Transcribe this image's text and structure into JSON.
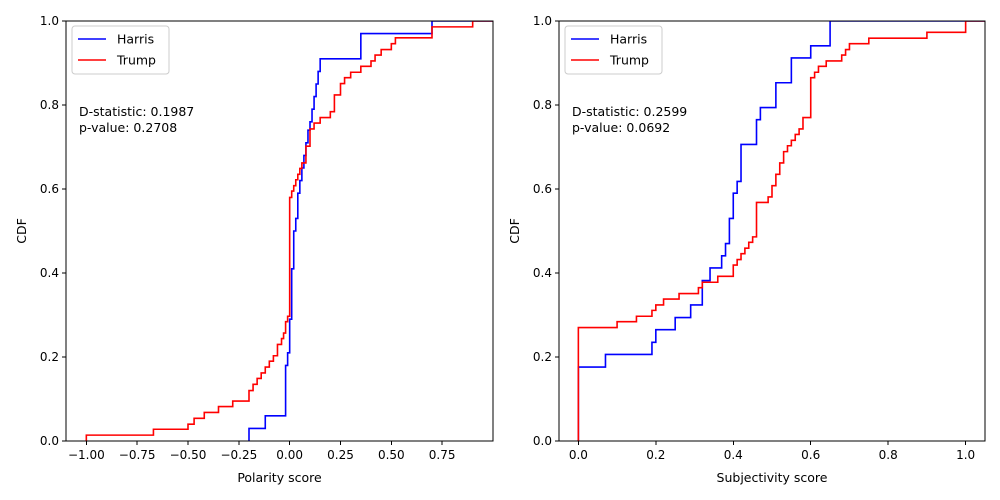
{
  "chart_data": [
    {
      "type": "line",
      "step": true,
      "xlabel": "Polarity score",
      "ylabel": "CDF",
      "xlim": [
        -1.1,
        1.0
      ],
      "ylim": [
        0.0,
        1.0
      ],
      "xticks": [
        -1.0,
        -0.75,
        -0.5,
        -0.25,
        0.0,
        0.25,
        0.5,
        0.75
      ],
      "xtick_labels": [
        "−1.00",
        "−0.75",
        "−0.50",
        "−0.25",
        "0.00",
        "0.25",
        "0.50",
        "0.75"
      ],
      "yticks": [
        0.0,
        0.2,
        0.4,
        0.6,
        0.8,
        1.0
      ],
      "ytick_labels": [
        "0.0",
        "0.2",
        "0.4",
        "0.6",
        "0.8",
        "1.0"
      ],
      "grid": false,
      "legend_position": "top-left",
      "stats": [
        "D-statistic: 0.1987",
        "p-value: 0.2708"
      ],
      "series": [
        {
          "name": "Harris",
          "color": "#0000ff",
          "x": [
            -0.2,
            -0.12,
            -0.02,
            -0.01,
            0.0,
            0.01,
            0.02,
            0.03,
            0.04,
            0.05,
            0.06,
            0.07,
            0.08,
            0.09,
            0.1,
            0.11,
            0.12,
            0.13,
            0.14,
            0.15,
            0.17,
            0.2,
            0.35,
            0.7
          ],
          "y": [
            0.03,
            0.06,
            0.18,
            0.21,
            0.29,
            0.41,
            0.5,
            0.53,
            0.59,
            0.62,
            0.65,
            0.68,
            0.71,
            0.74,
            0.76,
            0.79,
            0.82,
            0.85,
            0.88,
            0.91,
            0.91,
            0.91,
            0.97,
            1.0
          ]
        },
        {
          "name": "Trump",
          "color": "#ff0000",
          "x": [
            -1.0,
            -0.67,
            -0.5,
            -0.47,
            -0.42,
            -0.35,
            -0.28,
            -0.2,
            -0.18,
            -0.16,
            -0.14,
            -0.12,
            -0.1,
            -0.08,
            -0.06,
            -0.04,
            -0.03,
            -0.02,
            -0.01,
            0.0,
            0.01,
            0.02,
            0.03,
            0.04,
            0.05,
            0.06,
            0.08,
            0.1,
            0.12,
            0.15,
            0.2,
            0.22,
            0.25,
            0.27,
            0.3,
            0.35,
            0.4,
            0.42,
            0.45,
            0.5,
            0.52,
            0.7,
            0.9
          ],
          "y": [
            0.014,
            0.028,
            0.04,
            0.054,
            0.068,
            0.082,
            0.095,
            0.12,
            0.135,
            0.149,
            0.162,
            0.176,
            0.19,
            0.203,
            0.23,
            0.244,
            0.257,
            0.284,
            0.297,
            0.58,
            0.595,
            0.608,
            0.622,
            0.635,
            0.649,
            0.662,
            0.702,
            0.743,
            0.757,
            0.77,
            0.784,
            0.824,
            0.851,
            0.865,
            0.878,
            0.892,
            0.905,
            0.919,
            0.932,
            0.946,
            0.96,
            0.986,
            1.0
          ]
        }
      ]
    },
    {
      "type": "line",
      "step": true,
      "xlabel": "Subjectivity score",
      "ylabel": "CDF",
      "xlim": [
        -0.05,
        1.05
      ],
      "ylim": [
        0.0,
        1.0
      ],
      "xticks": [
        0.0,
        0.2,
        0.4,
        0.6,
        0.8,
        1.0
      ],
      "xtick_labels": [
        "0.0",
        "0.2",
        "0.4",
        "0.6",
        "0.8",
        "1.0"
      ],
      "yticks": [
        0.0,
        0.2,
        0.4,
        0.6,
        0.8,
        1.0
      ],
      "ytick_labels": [
        "0.0",
        "0.2",
        "0.4",
        "0.6",
        "0.8",
        "1.0"
      ],
      "grid": false,
      "legend_position": "top-left",
      "stats": [
        "D-statistic: 0.2599",
        "p-value: 0.0692"
      ],
      "series": [
        {
          "name": "Harris",
          "color": "#0000ff",
          "x": [
            0.0,
            0.07,
            0.19,
            0.2,
            0.25,
            0.29,
            0.32,
            0.34,
            0.37,
            0.38,
            0.39,
            0.4,
            0.41,
            0.42,
            0.46,
            0.47,
            0.51,
            0.55,
            0.6,
            0.65
          ],
          "y": [
            0.176,
            0.206,
            0.235,
            0.265,
            0.294,
            0.324,
            0.382,
            0.412,
            0.441,
            0.47,
            0.53,
            0.59,
            0.618,
            0.706,
            0.765,
            0.794,
            0.853,
            0.912,
            0.941,
            1.0
          ]
        },
        {
          "name": "Trump",
          "color": "#ff0000",
          "x": [
            0.0,
            0.1,
            0.15,
            0.19,
            0.2,
            0.22,
            0.26,
            0.31,
            0.32,
            0.36,
            0.4,
            0.41,
            0.42,
            0.43,
            0.44,
            0.45,
            0.46,
            0.49,
            0.5,
            0.51,
            0.52,
            0.53,
            0.54,
            0.55,
            0.56,
            0.57,
            0.58,
            0.6,
            0.61,
            0.62,
            0.64,
            0.68,
            0.69,
            0.7,
            0.75,
            0.9,
            1.0
          ],
          "y": [
            0.27,
            0.284,
            0.297,
            0.311,
            0.324,
            0.338,
            0.351,
            0.365,
            0.378,
            0.392,
            0.419,
            0.432,
            0.446,
            0.459,
            0.473,
            0.486,
            0.568,
            0.581,
            0.608,
            0.635,
            0.662,
            0.689,
            0.703,
            0.716,
            0.73,
            0.743,
            0.77,
            0.865,
            0.878,
            0.892,
            0.905,
            0.919,
            0.932,
            0.946,
            0.959,
            0.973,
            1.0
          ]
        }
      ]
    }
  ]
}
